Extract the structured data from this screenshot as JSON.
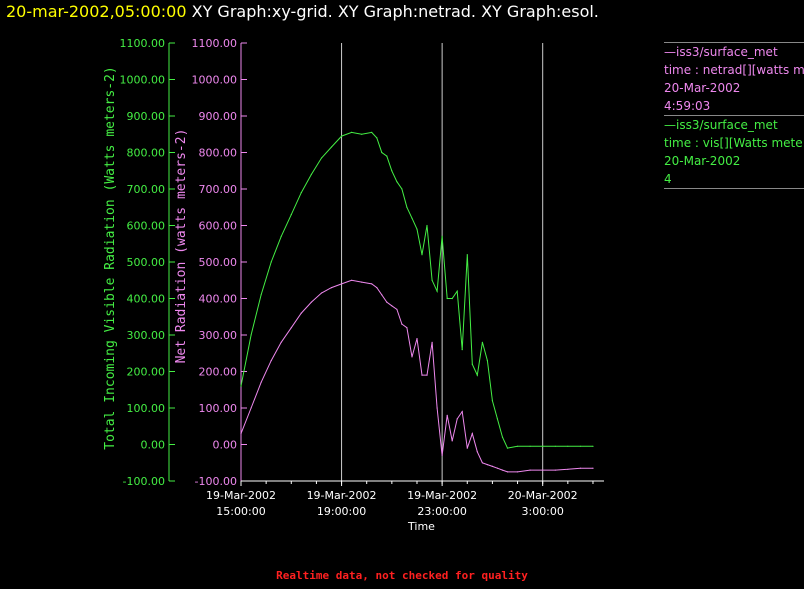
{
  "header": {
    "timestamp": "20-mar-2002,05:00:00",
    "titles": "XY Graph:xy-grid.  XY Graph:netrad.  XY Graph:esol."
  },
  "footer": {
    "notice": "Realtime data, not checked for quality"
  },
  "legend": [
    {
      "color": "#ee88ee",
      "lines": [
        "—iss3/surface_met",
        "time : netrad[][watts me",
        "20-Mar-2002",
        "4:59:03"
      ]
    },
    {
      "color": "#44ee44",
      "lines": [
        "—iss3/surface_met",
        "time : vis[][Watts mete",
        "20-Mar-2002",
        "4"
      ]
    }
  ],
  "colors": {
    "netrad": "#ee88ee",
    "vis": "#44ee44",
    "grid": "#cccccc",
    "axis": "#ffffff"
  },
  "chart_data": {
    "type": "line",
    "xlabel": "Time",
    "x_ticks": [
      {
        "hour": 15,
        "label": [
          "19-Mar-2002",
          "15:00:00"
        ]
      },
      {
        "hour": 19,
        "label": [
          "19-Mar-2002",
          "19:00:00"
        ]
      },
      {
        "hour": 23,
        "label": [
          "19-Mar-2002",
          "23:00:00"
        ]
      },
      {
        "hour": 27,
        "label": [
          "20-Mar-2002",
          "3:00:00"
        ]
      }
    ],
    "xlim_hours": [
      15.0,
      29.2
    ],
    "x_grid_hours": [
      19,
      23,
      27
    ],
    "y_left": {
      "label": "Total Incoming Visible Radiation (Watts meters-2)",
      "ticks": [
        "1100.00",
        "1000.00",
        "900.00",
        "800.00",
        "700.00",
        "600.00",
        "500.00",
        "400.00",
        "300.00",
        "200.00",
        "100.00",
        "0.00",
        "-100.00"
      ],
      "ylim": [
        -100,
        1100
      ]
    },
    "y_right": {
      "label": "Net Radiation (watts meters-2)",
      "ticks": [
        "1100.00",
        "1000.00",
        "900.00",
        "800.00",
        "700.00",
        "600.00",
        "500.00",
        "400.00",
        "300.00",
        "200.00",
        "100.00",
        "0.00",
        "-100.00"
      ],
      "ylim": [
        -100,
        1100
      ]
    },
    "series": [
      {
        "key": "vis",
        "x": [
          15.0,
          15.4,
          15.8,
          16.2,
          16.6,
          17.0,
          17.4,
          17.8,
          18.2,
          18.6,
          19.0,
          19.4,
          19.8,
          20.2,
          20.4,
          20.6,
          20.8,
          21.0,
          21.2,
          21.4,
          21.6,
          21.8,
          22.0,
          22.2,
          22.4,
          22.6,
          22.8,
          23.0,
          23.2,
          23.4,
          23.6,
          23.8,
          24.0,
          24.2,
          24.4,
          24.6,
          24.8,
          25.0,
          25.2,
          25.4,
          25.6,
          26.0,
          26.5,
          27.0,
          27.5,
          28.0,
          28.5,
          29.0
        ],
        "y": [
          160,
          300,
          410,
          500,
          570,
          630,
          690,
          740,
          785,
          815,
          845,
          855,
          850,
          855,
          840,
          800,
          790,
          750,
          720,
          700,
          650,
          620,
          590,
          520,
          600,
          450,
          420,
          570,
          400,
          400,
          420,
          260,
          520,
          220,
          190,
          280,
          230,
          120,
          70,
          20,
          -10,
          -5,
          -5,
          -5,
          -5,
          -5,
          -5,
          -5
        ]
      },
      {
        "key": "netrad",
        "x": [
          15.0,
          15.4,
          15.8,
          16.2,
          16.6,
          17.0,
          17.4,
          17.8,
          18.2,
          18.6,
          19.0,
          19.4,
          19.8,
          20.2,
          20.4,
          20.6,
          20.8,
          21.0,
          21.2,
          21.4,
          21.6,
          21.8,
          22.0,
          22.2,
          22.4,
          22.6,
          22.8,
          23.0,
          23.2,
          23.4,
          23.6,
          23.8,
          24.0,
          24.2,
          24.4,
          24.6,
          24.8,
          25.0,
          25.2,
          25.4,
          25.6,
          26.0,
          26.5,
          27.0,
          27.5,
          28.0,
          28.5,
          29.0
        ],
        "y": [
          30,
          100,
          170,
          230,
          280,
          320,
          360,
          390,
          415,
          430,
          440,
          450,
          445,
          440,
          430,
          410,
          390,
          380,
          370,
          330,
          320,
          240,
          290,
          190,
          190,
          280,
          100,
          -30,
          80,
          10,
          70,
          90,
          -10,
          30,
          -20,
          -50,
          -55,
          -60,
          -65,
          -70,
          -75,
          -75,
          -70,
          -70,
          -70,
          -68,
          -65,
          -65
        ]
      }
    ]
  }
}
